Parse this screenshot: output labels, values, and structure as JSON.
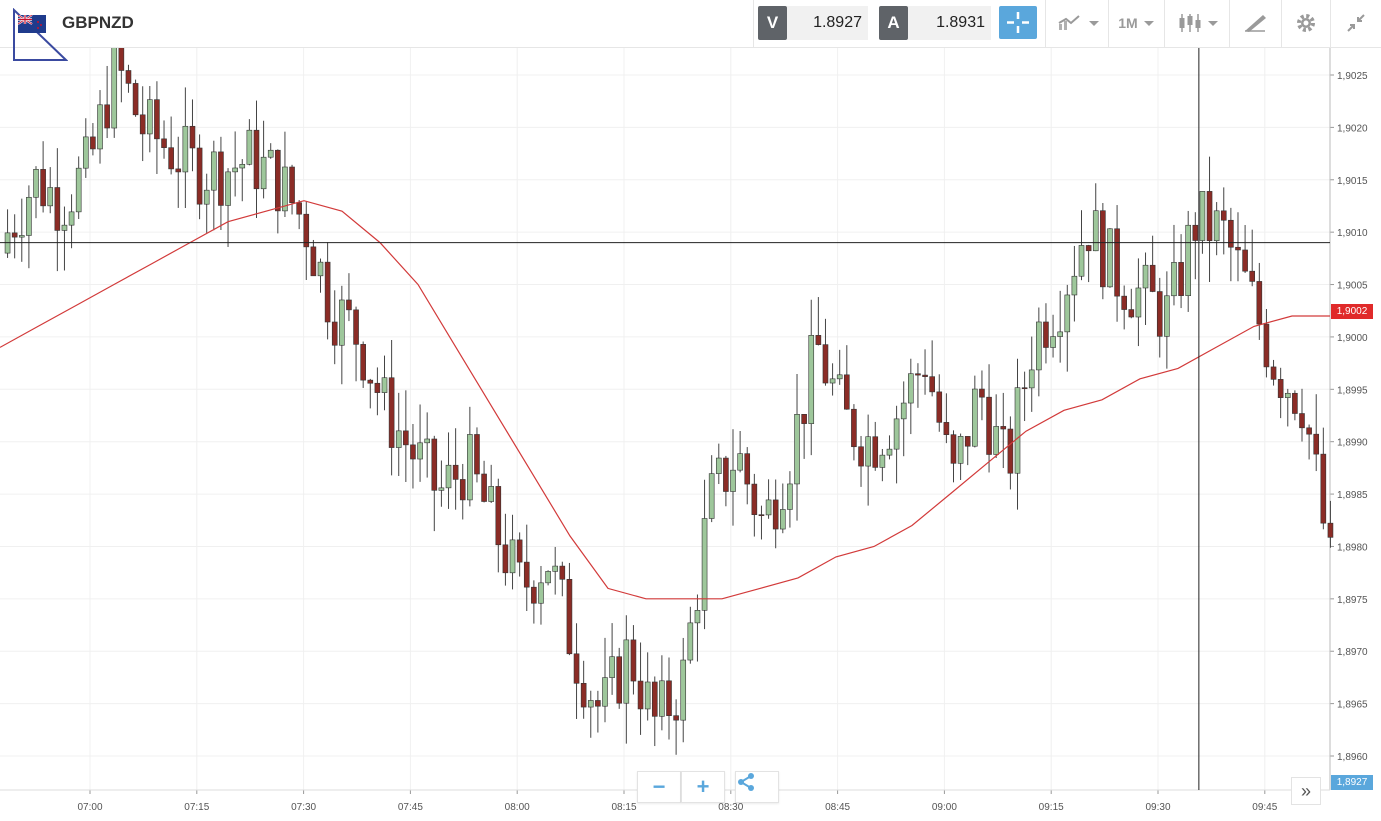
{
  "header": {
    "symbol": "GBPNZD",
    "sell_label": "V",
    "sell_price": "1.8927",
    "buy_label": "A",
    "buy_price": "1.8931",
    "timeframe_label": "1M"
  },
  "icons": {
    "flag": "uk-nz-flag-icon",
    "crosshair": "crosshair-icon",
    "chart_type": "line-chart-icon",
    "candles": "candlestick-icon",
    "draw": "draw-pen-icon",
    "settings": "gear-icon",
    "collapse": "collapse-icon",
    "zoom_out": "minus-icon",
    "zoom_in": "plus-icon",
    "share": "share-icon",
    "scroll_right": "double-chevron-right-icon"
  },
  "colors": {
    "bull": "#9ec79b",
    "bear": "#8b2c26",
    "ma": "#d23a3a",
    "current_price_tag": "#e03030",
    "bid_tag": "#5aa7dc",
    "accent": "#5aa7dc"
  },
  "current_price_tag": "1,9002",
  "bid_price_tag": "1,8927",
  "chart_data": {
    "type": "candlestick",
    "x_ticks": [
      "07:00",
      "07:15",
      "07:30",
      "07:45",
      "08:00",
      "08:15",
      "08:30",
      "08:45",
      "09:00",
      "09:15",
      "09:30",
      "09:45"
    ],
    "y_ticks": [
      "1,9025",
      "1,9020",
      "1,9015",
      "1,9010",
      "1,9005",
      "1,9000",
      "1,8995",
      "1,8990",
      "1,8985",
      "1,8980",
      "1,8975",
      "1,8970",
      "1,8965",
      "1,8960"
    ],
    "ylim": [
      1.8957,
      1.9029
    ],
    "grid": true,
    "horizontal_line": 1.9009,
    "crosshair_time_index": 168,
    "ma_values": [
      1.8999,
      1.9001,
      1.9003,
      1.9005,
      1.9007,
      1.9009,
      1.9011,
      1.9012,
      1.9013,
      1.9012,
      1.9009,
      1.9005,
      1.8999,
      1.8993,
      1.8987,
      1.8981,
      1.8976,
      1.8975,
      1.8975,
      1.8975,
      1.8976,
      1.8977,
      1.8979,
      1.898,
      1.8982,
      1.8985,
      1.8988,
      1.8991,
      1.8993,
      1.8994,
      1.8996,
      1.8997,
      1.8999,
      1.9001,
      1.9002,
      1.9002
    ],
    "candles_sampled": [
      [
        1.9008,
        1.901,
        1.9007,
        1.9011
      ],
      [
        1.901,
        1.9015,
        1.9009,
        1.9016
      ],
      [
        1.9015,
        1.9013,
        1.9012,
        1.9016
      ],
      [
        1.9013,
        1.9016,
        1.9012,
        1.9017
      ],
      [
        1.9016,
        1.9026,
        1.9015,
        1.9026
      ],
      [
        1.9024,
        1.902,
        1.9019,
        1.9025
      ],
      [
        1.902,
        1.9018,
        1.9017,
        1.9021
      ],
      [
        1.9018,
        1.9016,
        1.9014,
        1.9019
      ],
      [
        1.9013,
        1.9016,
        1.901,
        1.9017
      ],
      [
        1.9016,
        1.9017,
        1.9015,
        1.9019
      ],
      [
        1.9018,
        1.9015,
        1.9014,
        1.9019
      ],
      [
        1.9015,
        1.9011,
        1.901,
        1.9016
      ],
      [
        1.9009,
        1.9003,
        1.9002,
        1.901
      ],
      [
        1.9003,
        1.9,
        1.8999,
        1.9004
      ],
      [
        1.8998,
        1.8993,
        1.8992,
        1.8999
      ],
      [
        1.8993,
        1.8989,
        1.8986,
        1.8994
      ],
      [
        1.8989,
        1.8985,
        1.8984,
        1.8991
      ],
      [
        1.8985,
        1.8988,
        1.8983,
        1.8991
      ],
      [
        1.8985,
        1.8982,
        1.8979,
        1.8987
      ],
      [
        1.8981,
        1.8976,
        1.8975,
        1.8983
      ],
      [
        1.8976,
        1.8979,
        1.8972,
        1.898
      ],
      [
        1.8976,
        1.897,
        1.8968,
        1.8977
      ],
      [
        1.897,
        1.8964,
        1.8962,
        1.8971
      ],
      [
        1.8965,
        1.897,
        1.8963,
        1.8971
      ],
      [
        1.8969,
        1.8963,
        1.8961,
        1.897
      ],
      [
        1.8961,
        1.8967,
        1.8958,
        1.8967
      ],
      [
        1.8972,
        1.8984,
        1.8971,
        1.8986
      ],
      [
        1.8986,
        1.8989,
        1.8984,
        1.8992
      ],
      [
        1.8987,
        1.8982,
        1.898,
        1.8988
      ],
      [
        1.8982,
        1.8989,
        1.8981,
        1.899
      ],
      [
        1.899,
        1.8999,
        1.8988,
        1.9001
      ],
      [
        1.8996,
        1.8992,
        1.8989,
        1.8998
      ],
      [
        1.8995,
        1.899,
        1.8989,
        1.8999
      ],
      [
        1.899,
        1.8993,
        1.8986,
        1.8994
      ],
      [
        1.8997,
        1.8998,
        1.8992,
        1.8998
      ],
      [
        1.8992,
        1.8986,
        1.8984,
        1.8994
      ],
      [
        1.8988,
        1.8995,
        1.8982,
        1.8998
      ],
      [
        1.8985,
        1.8987,
        1.898,
        1.8989
      ],
      [
        1.8994,
        1.9,
        1.8992,
        1.9007
      ],
      [
        1.9001,
        1.9004,
        1.8998,
        1.9007
      ],
      [
        1.9006,
        1.9011,
        1.9004,
        1.9018
      ],
      [
        1.9011,
        1.9006,
        1.9002,
        1.9014
      ],
      [
        1.901,
        1.9004,
        1.9001,
        1.9012
      ],
      [
        1.901,
        1.9002,
        1.9,
        1.9012
      ],
      [
        1.901,
        1.9011,
        1.9008,
        1.9019
      ],
      [
        1.9013,
        1.901,
        1.9008,
        1.9016
      ],
      [
        1.9009,
        1.9004,
        1.9003,
        1.901
      ],
      [
        1.8999,
        1.8997,
        1.8995,
        1.8999
      ],
      [
        1.8998,
        1.8994,
        1.8992,
        1.8999
      ],
      [
        1.8987,
        1.8978,
        1.8972,
        1.8988
      ]
    ]
  }
}
